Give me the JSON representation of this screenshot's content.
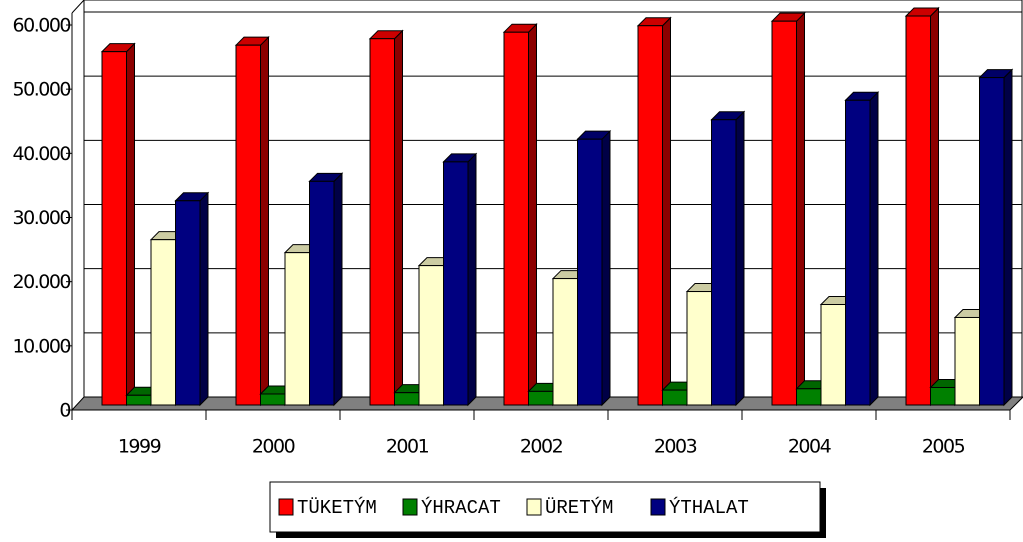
{
  "chart_data": {
    "type": "bar3d",
    "categories": [
      "1999",
      "2000",
      "2001",
      "2002",
      "2003",
      "2004",
      "2005"
    ],
    "series": [
      {
        "name": "TÜKETÝM",
        "color": "#ff0000",
        "values": [
          54500,
          55500,
          56500,
          57500,
          58500,
          59200,
          60000
        ]
      },
      {
        "name": "ÝHRACAT",
        "color": "#008000",
        "values": [
          1500,
          1700,
          1900,
          2100,
          2300,
          2500,
          2700
        ]
      },
      {
        "name": "ÜRETÝM",
        "color": "#ffffcc",
        "values": [
          25500,
          23500,
          21500,
          19500,
          17500,
          15500,
          13500
        ]
      },
      {
        "name": "ÝTHALAT",
        "color": "#000080",
        "values": [
          31500,
          34500,
          37500,
          41000,
          44000,
          47000,
          50500
        ]
      }
    ],
    "ylim": [
      0,
      60000
    ],
    "yticks": [
      0,
      {
        "value": 10000,
        "label": "10.000"
      },
      {
        "value": 20000,
        "label": "20.000"
      },
      {
        "value": 30000,
        "label": "30.000"
      },
      {
        "value": 40000,
        "label": "40.000"
      },
      {
        "value": 50000,
        "label": "50.000"
      },
      {
        "value": 60000,
        "label": "60.000"
      }
    ],
    "grid": true,
    "legend": "bottom"
  }
}
